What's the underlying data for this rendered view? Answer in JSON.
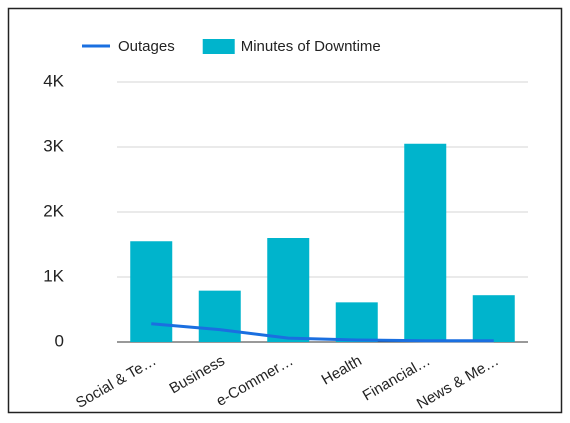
{
  "chart_data": {
    "type": "bar",
    "categories": [
      "Social & Te…",
      "Business",
      "e-Commer…",
      "Health",
      "Financial…",
      "News & Me…"
    ],
    "series": [
      {
        "name": "Outages",
        "type": "line",
        "color": "#1a6fe0",
        "values": [
          280,
          190,
          60,
          30,
          20,
          20
        ]
      },
      {
        "name": "Minutes of Downtime",
        "type": "bar",
        "color": "#00b4cc",
        "values": [
          1550,
          790,
          1600,
          610,
          3050,
          720
        ]
      }
    ],
    "ylim": [
      0,
      4000
    ],
    "yticks": [
      0,
      {
        "value": 1000,
        "label": "1K"
      },
      {
        "value": 2000,
        "label": "2K"
      },
      {
        "value": 3000,
        "label": "3K"
      },
      {
        "value": 4000,
        "label": "4K"
      }
    ],
    "grid": true,
    "legend": "top"
  }
}
